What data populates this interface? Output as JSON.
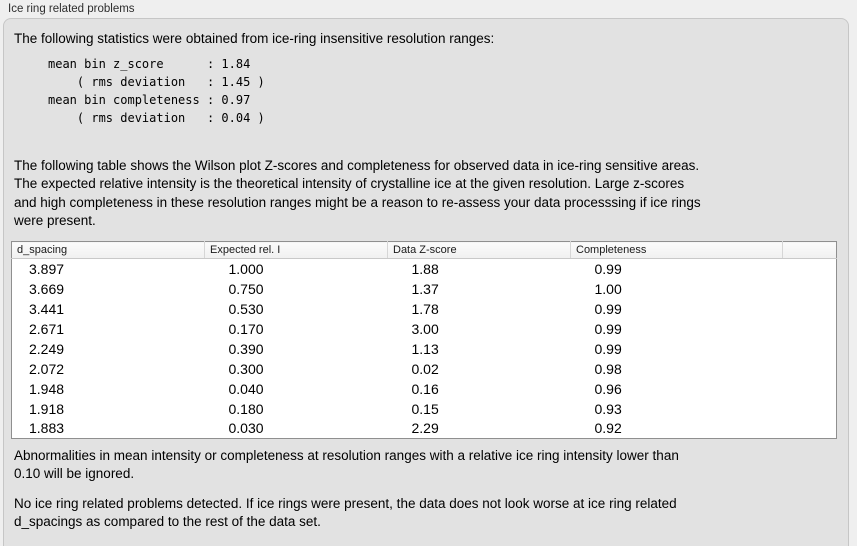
{
  "group_box": {
    "title": "Ice ring related problems"
  },
  "intro": "The following statistics were obtained from ice-ring insensitive resolution ranges:",
  "stats_block": {
    "lines": [
      "mean bin z_score      : 1.84",
      "    ( rms deviation   : 1.45 )",
      "mean bin completeness : 0.97",
      "    ( rms deviation   : 0.04 )"
    ]
  },
  "description": {
    "lines": [
      "The following table shows the Wilson plot Z-scores and completeness for observed data in ice-ring sensitive areas.",
      "The expected relative intensity is the theoretical intensity of crystalline ice at the given resolution. Large z-scores",
      "and high completeness in these resolution ranges might be a reason to re-assess your data processsing if ice rings",
      "were present."
    ]
  },
  "table": {
    "columns": [
      "d_spacing",
      "Expected rel. I",
      "Data Z-score",
      "Completeness",
      ""
    ],
    "rows": [
      [
        "3.897",
        "1.000",
        "1.88",
        "0.99"
      ],
      [
        "3.669",
        "0.750",
        "1.37",
        "1.00"
      ],
      [
        "3.441",
        "0.530",
        "1.78",
        "0.99"
      ],
      [
        "2.671",
        "0.170",
        "3.00",
        "0.99"
      ],
      [
        "2.249",
        "0.390",
        "1.13",
        "0.99"
      ],
      [
        "2.072",
        "0.300",
        "0.02",
        "0.98"
      ],
      [
        "1.948",
        "0.040",
        "0.16",
        "0.96"
      ],
      [
        "1.918",
        "0.180",
        "0.15",
        "0.93"
      ],
      [
        "1.883",
        "0.030",
        "2.29",
        "0.92"
      ]
    ]
  },
  "footnote": {
    "lines": [
      "Abnormalities in mean intensity or completeness at resolution ranges with a relative ice ring intensity lower than",
      "0.10 will be ignored."
    ]
  },
  "conclusion": {
    "lines": [
      "No ice ring related problems detected. If ice rings were present, the data does not look worse at ice ring related",
      "d_spacings as compared to the rest of the data set."
    ]
  },
  "colors": {
    "outer_bg": "#efefef",
    "panel_bg": "#e2e2e2",
    "panel_border": "#c6c6c6",
    "table_border": "#8f8f8f",
    "table_header_bg": "#f6f6f6",
    "text": "#000000"
  }
}
